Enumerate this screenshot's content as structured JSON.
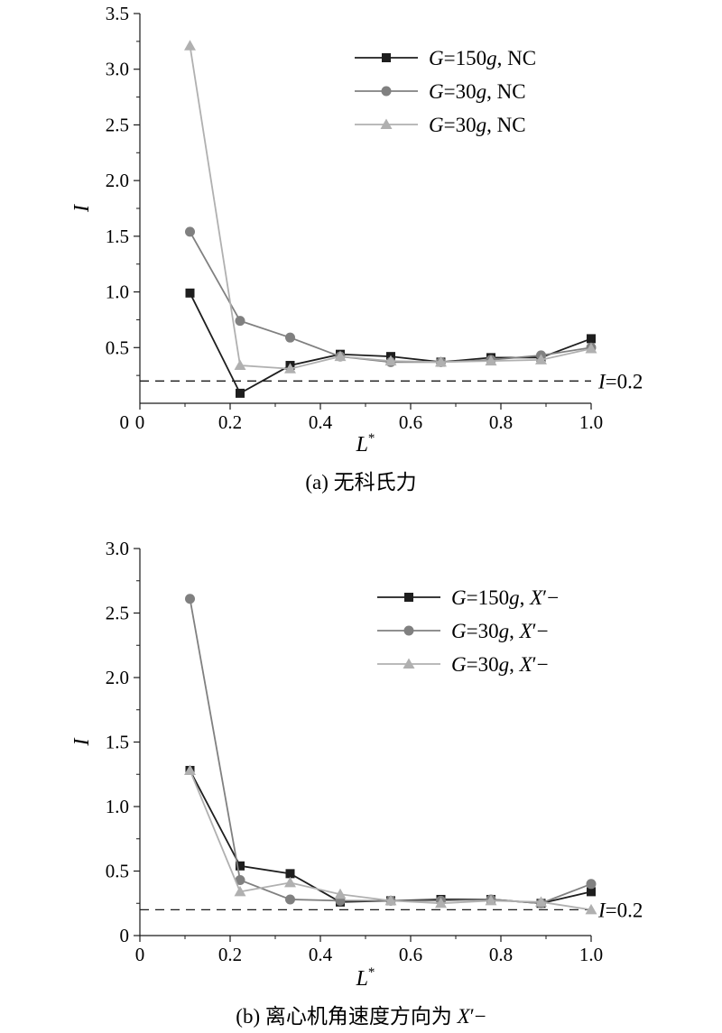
{
  "chart_data": [
    {
      "type": "line",
      "panel": "a",
      "caption": "(a) 无科氏力",
      "xlabel": "L*",
      "ylabel": "I",
      "xlim": [
        0,
        1.0
      ],
      "ylim": [
        0,
        3.5
      ],
      "x_ticks": [
        "0",
        "0.2",
        "0.4",
        "0.6",
        "0.8",
        "1.0"
      ],
      "y_ticks": [
        "0.5",
        "1.0",
        "1.5",
        "2.0",
        "2.5",
        "3.0",
        "3.5"
      ],
      "x": [
        0.111,
        0.222,
        0.333,
        0.444,
        0.556,
        0.667,
        0.778,
        0.889,
        1.0
      ],
      "series": [
        {
          "name": "G=150g, NC",
          "name_parts": [
            "G",
            "=150",
            "g",
            ", NC"
          ],
          "marker": "square",
          "color": "#1e1e1e",
          "values": [
            0.99,
            0.09,
            0.34,
            0.44,
            0.42,
            0.37,
            0.41,
            0.41,
            0.58
          ]
        },
        {
          "name": "G=30g, NC",
          "name_parts": [
            "G",
            "=30",
            "g",
            ", NC"
          ],
          "marker": "circle",
          "color": "#808080",
          "values": [
            1.54,
            0.74,
            0.59,
            0.42,
            0.37,
            0.37,
            0.39,
            0.43,
            0.5
          ]
        },
        {
          "name": "G=30g, NC",
          "name_parts": [
            "G",
            "=30",
            "g",
            ", NC"
          ],
          "marker": "triangle",
          "color": "#b0b0b0",
          "values": [
            3.21,
            0.34,
            0.31,
            0.42,
            0.38,
            0.37,
            0.38,
            0.39,
            0.49
          ]
        }
      ],
      "reference_line": {
        "y": 0.2,
        "label": "I=0.2",
        "label_parts": [
          "I",
          "=0.2"
        ]
      },
      "legend_position": "top-right",
      "grid": false
    },
    {
      "type": "line",
      "panel": "b",
      "caption": "(b) 离心机角速度方向为 X′−",
      "caption_parts": [
        "(b) 离心机角速度方向为 ",
        "X",
        "′−"
      ],
      "xlabel": "L*",
      "ylabel": "I",
      "xlim": [
        0,
        1.0
      ],
      "ylim": [
        0,
        3.0
      ],
      "x_ticks": [
        "0",
        "0.2",
        "0.4",
        "0.6",
        "0.8",
        "1.0"
      ],
      "y_ticks": [
        "0",
        "0.5",
        "1.0",
        "1.5",
        "2.0",
        "2.5",
        "3.0"
      ],
      "x": [
        0.111,
        0.222,
        0.333,
        0.444,
        0.556,
        0.667,
        0.778,
        0.889,
        1.0
      ],
      "series": [
        {
          "name": "G=150g, X′−",
          "name_parts": [
            "G",
            "=150",
            "g",
            ", ",
            "X",
            "′−"
          ],
          "marker": "square",
          "color": "#1e1e1e",
          "values": [
            1.28,
            0.54,
            0.48,
            0.26,
            0.27,
            0.28,
            0.28,
            0.25,
            0.34
          ]
        },
        {
          "name": "G=30g, X′−",
          "name_parts": [
            "G",
            "=30",
            "g",
            ", ",
            "X",
            "′−"
          ],
          "marker": "circle",
          "color": "#808080",
          "values": [
            2.61,
            0.43,
            0.28,
            0.27,
            0.27,
            0.27,
            0.28,
            0.25,
            0.4
          ]
        },
        {
          "name": "G=30g, X′−",
          "name_parts": [
            "G",
            "=30",
            "g",
            ", ",
            "X",
            "′−"
          ],
          "marker": "triangle",
          "color": "#b0b0b0",
          "values": [
            1.28,
            0.34,
            0.41,
            0.32,
            0.27,
            0.25,
            0.27,
            0.26,
            0.2
          ]
        }
      ],
      "reference_line": {
        "y": 0.2,
        "label": "I=0.2",
        "label_parts": [
          "I",
          "=0.2"
        ]
      },
      "legend_position": "top-right",
      "grid": false
    }
  ]
}
